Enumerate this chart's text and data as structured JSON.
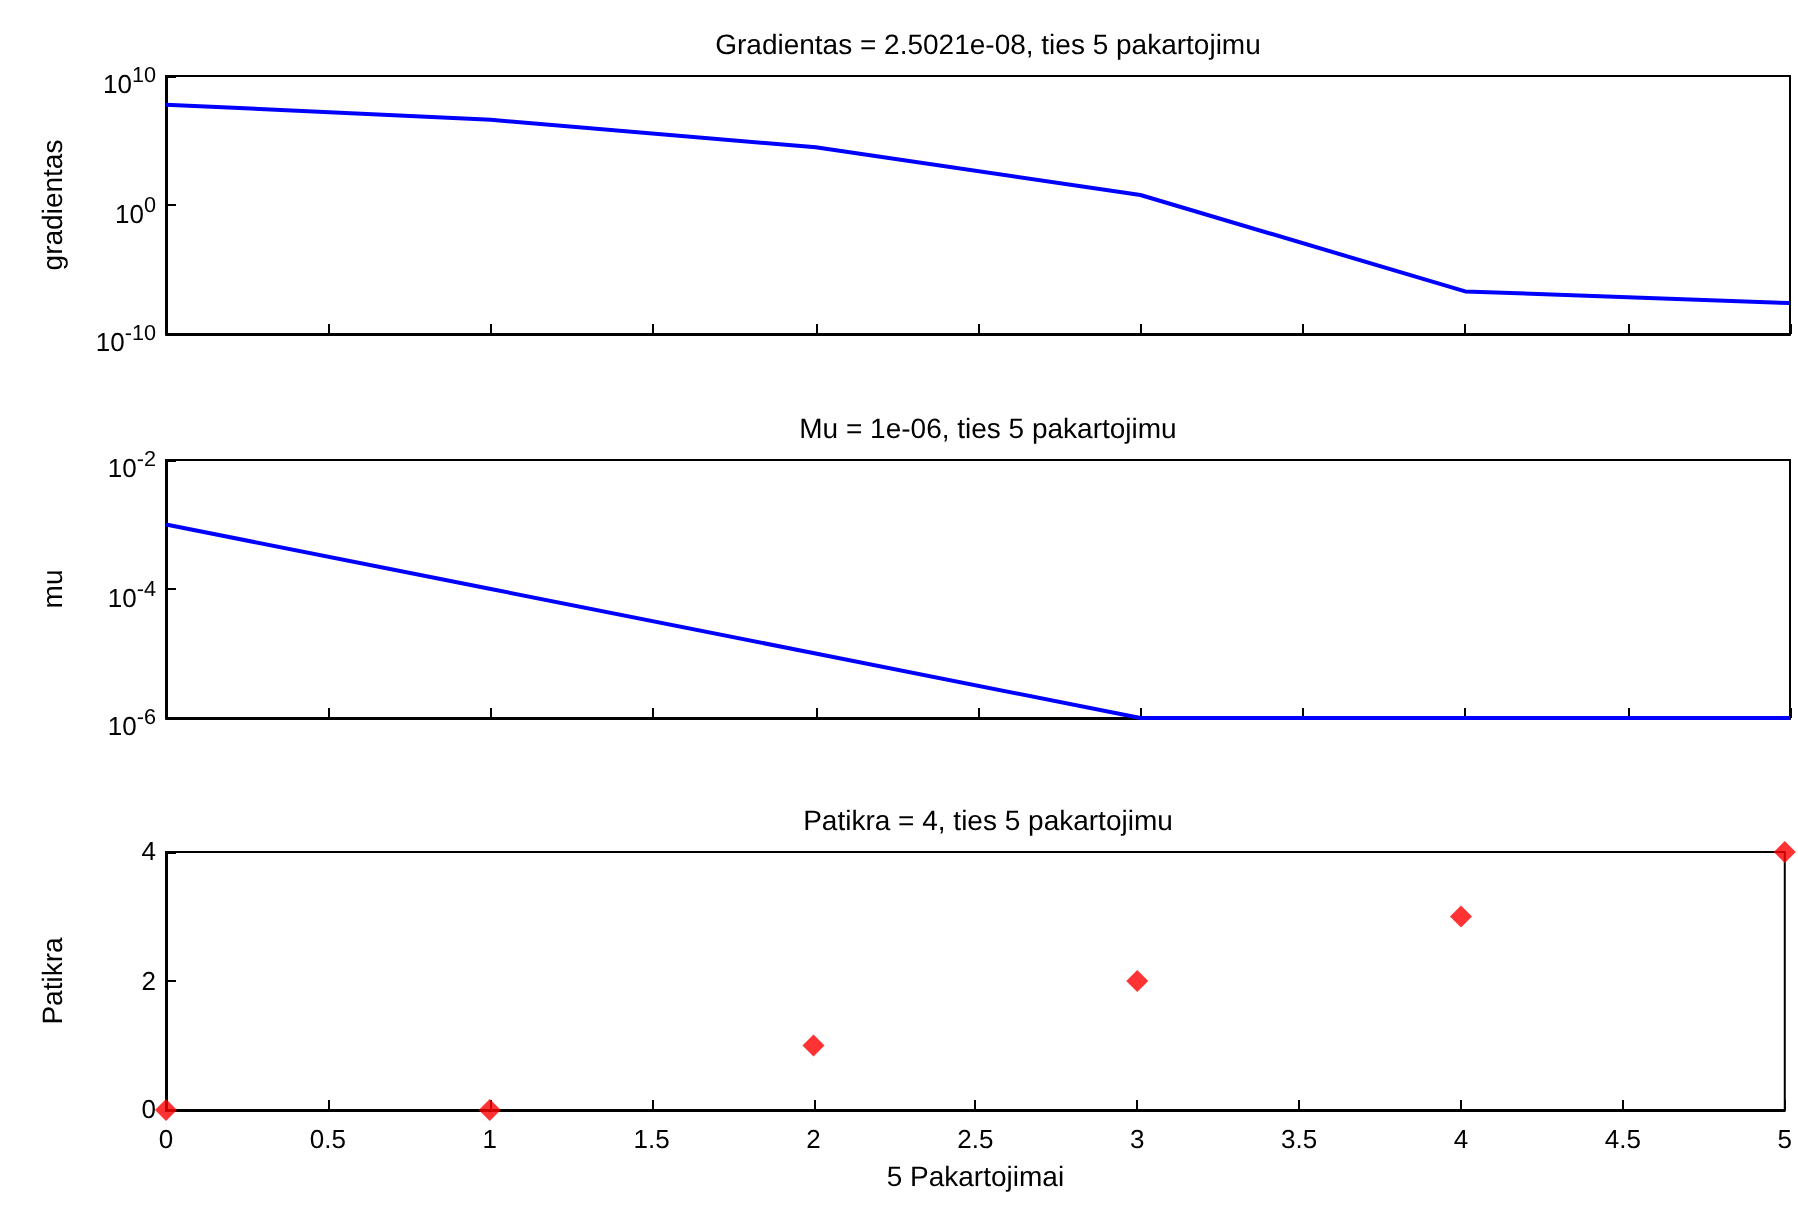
{
  "chart_data": [
    {
      "type": "line",
      "title": "Gradientas = 2.5021e-08, ties 5 pakartojimu",
      "ylabel": "gradientas",
      "x": [
        0,
        1,
        2,
        3,
        4,
        5
      ],
      "series": [
        {
          "color": "#0000ff",
          "values": [
            60000000,
            4000000,
            30000,
            6,
            2e-07,
            2.5021e-08
          ]
        }
      ],
      "log": "y",
      "xlim": [
        0,
        5
      ],
      "xticks": [
        0,
        0.5,
        1,
        1.5,
        2,
        2.5,
        3,
        3.5,
        4,
        4.5,
        5
      ],
      "ylim": [
        1e-10,
        10000000000
      ],
      "yticks": [
        {
          "value": 1e-10,
          "label": "10$^{-10}$"
        },
        {
          "value": 1,
          "label": "10$^{0}$"
        },
        {
          "value": 10000000000,
          "label": "10$^{10}$"
        }
      ],
      "tick_labels": "y",
      "grid": false,
      "marker": "none",
      "line_style": "solid"
    },
    {
      "type": "line",
      "title": "Mu = 1e-06, ties 5 pakartojimu",
      "ylabel": "mu",
      "x": [
        0,
        1,
        2,
        3,
        4,
        5
      ],
      "series": [
        {
          "color": "#0000ff",
          "values": [
            0.001,
            0.0001,
            1e-05,
            1e-06,
            1e-06,
            1e-06
          ]
        }
      ],
      "log": "y",
      "xlim": [
        0,
        5
      ],
      "xticks": [
        0,
        0.5,
        1,
        1.5,
        2,
        2.5,
        3,
        3.5,
        4,
        4.5,
        5
      ],
      "ylim": [
        1e-06,
        0.01
      ],
      "yticks": [
        {
          "value": 1e-06,
          "label": "10$^{-6}$"
        },
        {
          "value": 0.0001,
          "label": "10$^{-4}$"
        },
        {
          "value": 0.01,
          "label": "10$^{-2}$"
        }
      ],
      "tick_labels": "y",
      "grid": false,
      "marker": "none",
      "line_style": "solid"
    },
    {
      "type": "scatter",
      "title": "Patikra = 4, ties 5 pakartojimu",
      "xlabel": "5 Pakartojimai",
      "ylabel": "Patikra",
      "x": [
        0,
        1,
        2,
        3,
        4,
        5
      ],
      "series": [
        {
          "color": "#ff0000",
          "values": [
            0,
            0,
            1,
            2,
            3,
            4
          ]
        }
      ],
      "xlim": [
        0,
        5
      ],
      "xticks": [
        0,
        0.5,
        1,
        1.5,
        2,
        2.5,
        3,
        3.5,
        4,
        4.5,
        5
      ],
      "ylim": [
        0,
        4
      ],
      "yticks": [
        0,
        2,
        4
      ],
      "grid": false,
      "marker": "diamond"
    }
  ]
}
